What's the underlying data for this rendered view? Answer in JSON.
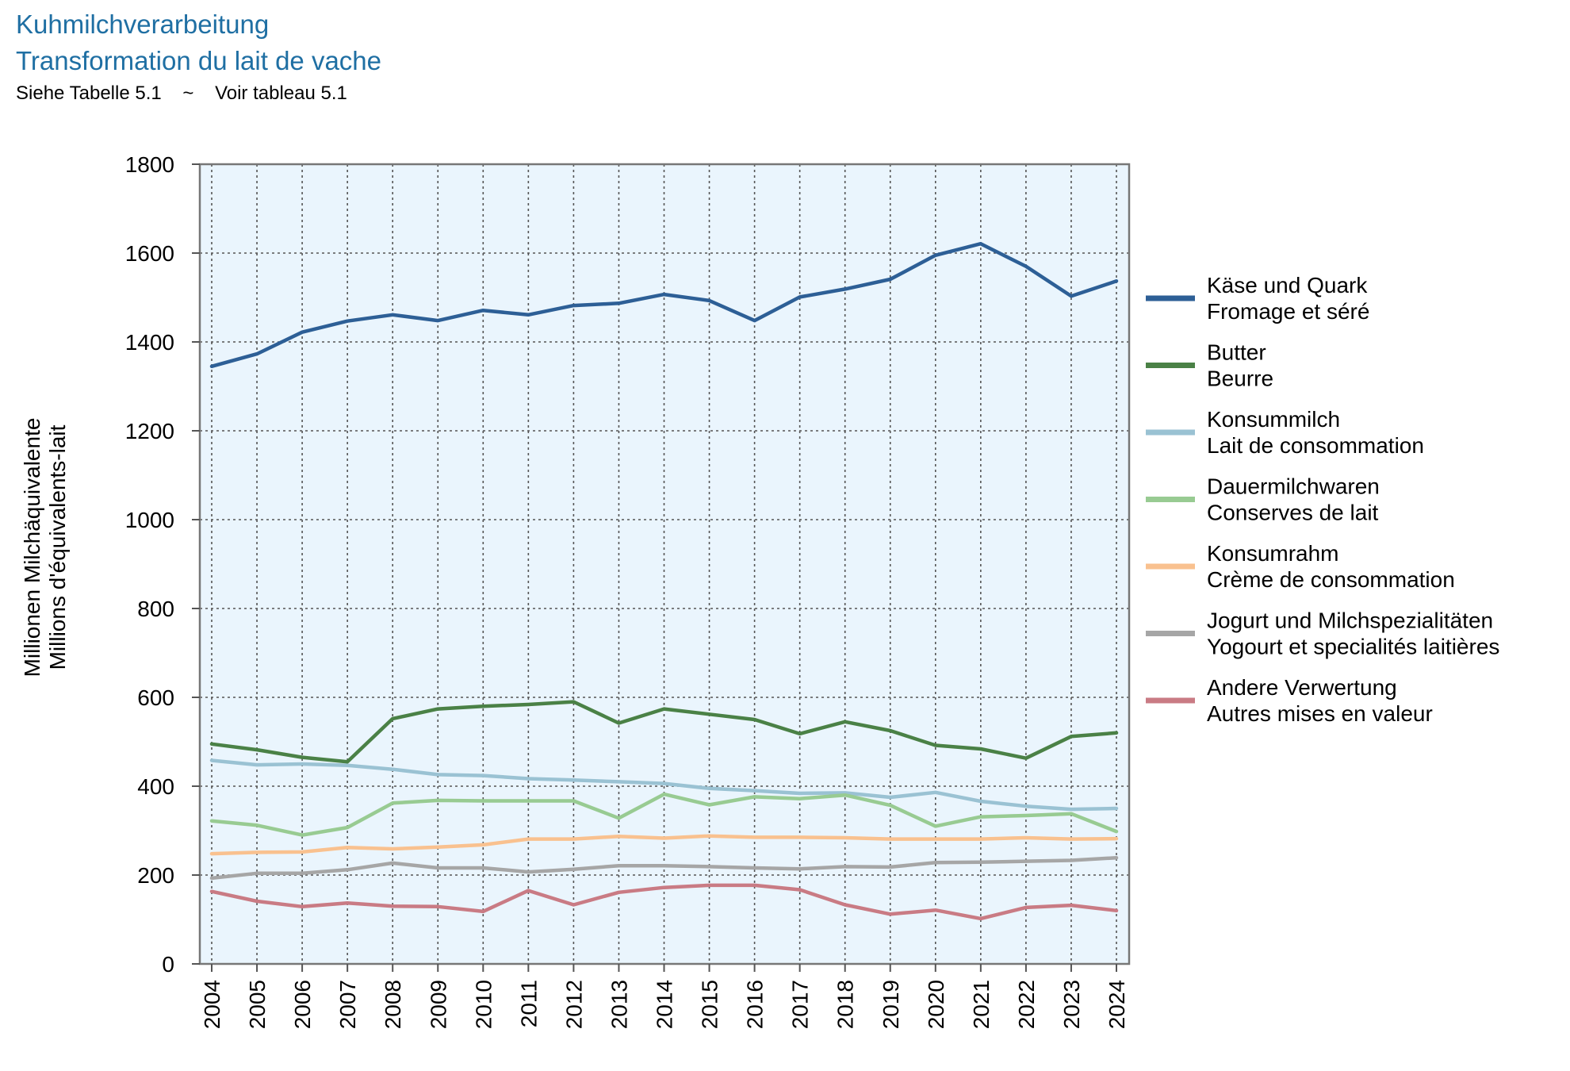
{
  "header": {
    "title_de": "Kuhmilchverarbeitung",
    "title_fr": "Transformation du lait de vache",
    "subtitle": "Siehe Tabelle 5.1    ~    Voir tableau 5.1"
  },
  "chart_data": {
    "type": "line",
    "ylabel_de": "Millionen Milchäquivalente",
    "ylabel_fr": "Millions d'équivalents-lait",
    "ylim": [
      0,
      1800
    ],
    "yticks": [
      0,
      200,
      400,
      600,
      800,
      1000,
      1200,
      1400,
      1600,
      1800
    ],
    "x": [
      2004,
      2005,
      2006,
      2007,
      2008,
      2009,
      2010,
      2011,
      2012,
      2013,
      2014,
      2015,
      2016,
      2017,
      2018,
      2019,
      2020,
      2021,
      2022,
      2023,
      2024
    ],
    "grid": true,
    "legend_position": "right",
    "plot_background": "#eaf5fd",
    "series": [
      {
        "name_de": "Käse und Quark",
        "name_fr": "Fromage et séré",
        "color": "#2d5f96",
        "values": [
          1345,
          1373,
          1422,
          1447,
          1461,
          1448,
          1471,
          1461,
          1482,
          1487,
          1507,
          1493,
          1448,
          1501,
          1519,
          1541,
          1595,
          1621,
          1570,
          1503,
          1537
        ]
      },
      {
        "name_de": "Butter",
        "name_fr": "Beurre",
        "color": "#4a8146",
        "values": [
          495,
          482,
          465,
          455,
          552,
          574,
          580,
          584,
          590,
          542,
          574,
          562,
          550,
          518,
          545,
          525,
          492,
          484,
          463,
          512,
          520
        ]
      },
      {
        "name_de": "Konsummilch",
        "name_fr": "Lait de consommation",
        "color": "#9ac2d3",
        "values": [
          458,
          448,
          450,
          447,
          438,
          426,
          424,
          417,
          414,
          410,
          406,
          395,
          390,
          384,
          385,
          375,
          386,
          366,
          355,
          348,
          350
        ]
      },
      {
        "name_de": "Dauermilchwaren",
        "name_fr": "Conserves de lait",
        "color": "#98cb92",
        "values": [
          322,
          312,
          290,
          307,
          362,
          368,
          367,
          367,
          367,
          328,
          382,
          358,
          376,
          372,
          380,
          357,
          310,
          331,
          334,
          338,
          298
        ]
      },
      {
        "name_de": "Konsumrahm",
        "name_fr": "Crème de consommation",
        "color": "#f9c18f",
        "values": [
          248,
          251,
          252,
          262,
          259,
          263,
          268,
          281,
          281,
          287,
          283,
          288,
          285,
          285,
          284,
          281,
          281,
          281,
          284,
          281,
          282
        ]
      },
      {
        "name_de": "Jogurt und Milchspezialitäten",
        "name_fr": "Yogourt et specialités laitières",
        "color": "#a6a6a6",
        "values": [
          193,
          204,
          204,
          212,
          227,
          216,
          216,
          207,
          213,
          221,
          221,
          219,
          216,
          214,
          219,
          218,
          228,
          229,
          231,
          233,
          239
        ]
      },
      {
        "name_de": "Andere Verwertung",
        "name_fr": "Autres mises en valeur",
        "color": "#c97b84",
        "values": [
          163,
          141,
          129,
          137,
          130,
          129,
          118,
          165,
          133,
          161,
          172,
          177,
          177,
          167,
          133,
          112,
          121,
          102,
          127,
          132,
          120
        ]
      }
    ]
  }
}
